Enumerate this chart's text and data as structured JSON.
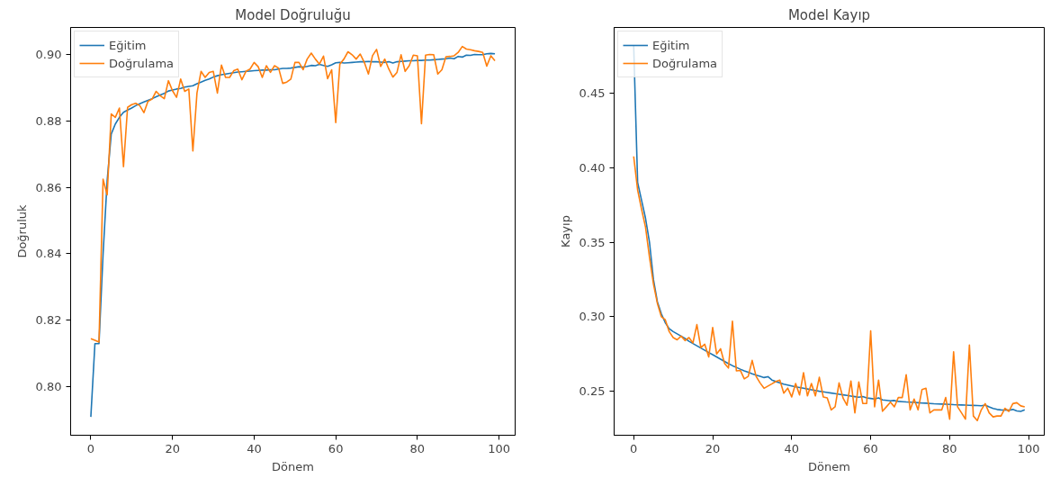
{
  "chart_data": [
    {
      "type": "line",
      "title": "Model Doğruluğu",
      "xlabel": "Dönem",
      "ylabel": "Doğruluk",
      "legend": "top left",
      "grid": false,
      "x": [
        0,
        1,
        2,
        3,
        4,
        5,
        6,
        7,
        8,
        9,
        10,
        11,
        12,
        13,
        14,
        15,
        16,
        17,
        18,
        19,
        20,
        21,
        22,
        23,
        24,
        25,
        26,
        27,
        28,
        29,
        30,
        31,
        32,
        33,
        34,
        35,
        36,
        37,
        38,
        39,
        40,
        41,
        42,
        43,
        44,
        45,
        46,
        47,
        48,
        49,
        50,
        51,
        52,
        53,
        54,
        55,
        56,
        57,
        58,
        59,
        60,
        61,
        62,
        63,
        64,
        65,
        66,
        67,
        68,
        69,
        70,
        71,
        72,
        73,
        74,
        75,
        76,
        77,
        78,
        79,
        80,
        81,
        82,
        83,
        84,
        85,
        86,
        87,
        88,
        89,
        90,
        91,
        92,
        93,
        94,
        95,
        96,
        97,
        98,
        99
      ],
      "xlim": [
        -4.95,
        103.95
      ],
      "xticks": [
        0,
        20,
        40,
        60,
        80,
        100
      ],
      "ylim": [
        0.7855,
        0.908
      ],
      "yticks": [
        {
          "value": 0.8,
          "label": "0.80"
        },
        {
          "value": 0.82,
          "label": "0.82"
        },
        {
          "value": 0.84,
          "label": "0.84"
        },
        {
          "value": 0.86,
          "label": "0.86"
        },
        {
          "value": 0.88,
          "label": "0.88"
        },
        {
          "value": 0.9,
          "label": "0.90"
        }
      ],
      "series": [
        {
          "name": "Eğitim",
          "color": "#1f77b4",
          "values": [
            0.791,
            0.813,
            0.813,
            0.84,
            0.862,
            0.876,
            0.879,
            0.881,
            0.8825,
            0.8832,
            0.8838,
            0.8845,
            0.8851,
            0.8856,
            0.8861,
            0.8866,
            0.8872,
            0.8877,
            0.8882,
            0.8889,
            0.8892,
            0.8895,
            0.8897,
            0.8901,
            0.8903,
            0.8905,
            0.8911,
            0.8916,
            0.8921,
            0.8925,
            0.8931,
            0.8935,
            0.8938,
            0.894,
            0.8942,
            0.8944,
            0.8946,
            0.8947,
            0.8948,
            0.8949,
            0.895,
            0.8951,
            0.8952,
            0.8952,
            0.8953,
            0.8953,
            0.8955,
            0.8957,
            0.8957,
            0.8958,
            0.896,
            0.8962,
            0.8961,
            0.8963,
            0.8966,
            0.8965,
            0.8969,
            0.8966,
            0.8963,
            0.8968,
            0.8974,
            0.8975,
            0.8973,
            0.8974,
            0.8975,
            0.8976,
            0.8977,
            0.8977,
            0.8978,
            0.8977,
            0.8977,
            0.8976,
            0.8975,
            0.8977,
            0.8973,
            0.8977,
            0.8978,
            0.8979,
            0.898,
            0.898,
            0.8981,
            0.8981,
            0.8982,
            0.8982,
            0.8983,
            0.8984,
            0.8985,
            0.8986,
            0.8988,
            0.8986,
            0.8993,
            0.8991,
            0.8997,
            0.8996,
            0.8999,
            0.8998,
            0.8998,
            0.9001,
            0.9002,
            0.9001
          ]
        },
        {
          "name": "Doğrulama",
          "color": "#ff7f0e",
          "values": [
            0.8145,
            0.814,
            0.8135,
            0.8624,
            0.8577,
            0.882,
            0.881,
            0.8838,
            0.8662,
            0.884,
            0.8848,
            0.8852,
            0.8845,
            0.8824,
            0.8858,
            0.8865,
            0.8888,
            0.8875,
            0.8866,
            0.892,
            0.889,
            0.887,
            0.8925,
            0.8888,
            0.8895,
            0.8709,
            0.8883,
            0.8948,
            0.893,
            0.8945,
            0.8948,
            0.8883,
            0.8967,
            0.893,
            0.893,
            0.895,
            0.8955,
            0.8923,
            0.8948,
            0.8955,
            0.8975,
            0.8962,
            0.893,
            0.8965,
            0.8945,
            0.8965,
            0.8958,
            0.8912,
            0.8916,
            0.8925,
            0.8975,
            0.8975,
            0.8953,
            0.8985,
            0.9003,
            0.8985,
            0.897,
            0.8994,
            0.8926,
            0.8953,
            0.8794,
            0.897,
            0.8985,
            0.9007,
            0.8998,
            0.8985,
            0.9,
            0.8975,
            0.894,
            0.8995,
            0.9014,
            0.8963,
            0.8985,
            0.8955,
            0.8931,
            0.8945,
            0.8998,
            0.8948,
            0.8965,
            0.8997,
            0.8995,
            0.8791,
            0.8997,
            0.8999,
            0.8998,
            0.894,
            0.8953,
            0.8992,
            0.8993,
            0.8995,
            0.9005,
            0.9023,
            0.9015,
            0.9013,
            0.901,
            0.9008,
            0.9005,
            0.8964,
            0.8995,
            0.898
          ]
        }
      ]
    },
    {
      "type": "line",
      "title": "Model Kayıp",
      "xlabel": "Dönem",
      "ylabel": "Kayıp",
      "legend": "top left",
      "grid": false,
      "x": [
        0,
        1,
        2,
        3,
        4,
        5,
        6,
        7,
        8,
        9,
        10,
        11,
        12,
        13,
        14,
        15,
        16,
        17,
        18,
        19,
        20,
        21,
        22,
        23,
        24,
        25,
        26,
        27,
        28,
        29,
        30,
        31,
        32,
        33,
        34,
        35,
        36,
        37,
        38,
        39,
        40,
        41,
        42,
        43,
        44,
        45,
        46,
        47,
        48,
        49,
        50,
        51,
        52,
        53,
        54,
        55,
        56,
        57,
        58,
        59,
        60,
        61,
        62,
        63,
        64,
        65,
        66,
        67,
        68,
        69,
        70,
        71,
        72,
        73,
        74,
        75,
        76,
        77,
        78,
        79,
        80,
        81,
        82,
        83,
        84,
        85,
        86,
        87,
        88,
        89,
        90,
        91,
        92,
        93,
        94,
        95,
        96,
        97,
        98,
        99
      ],
      "xlim": [
        -4.95,
        103.95
      ],
      "xticks": [
        0,
        20,
        40,
        60,
        80,
        100
      ],
      "ylim": [
        0.2205,
        0.494
      ],
      "yticks": [
        {
          "value": 0.25,
          "label": "0.25"
        },
        {
          "value": 0.3,
          "label": "0.30"
        },
        {
          "value": 0.35,
          "label": "0.35"
        },
        {
          "value": 0.4,
          "label": "0.40"
        },
        {
          "value": 0.45,
          "label": "0.45"
        }
      ],
      "series": [
        {
          "name": "Eğitim",
          "color": "#1f77b4",
          "values": [
            0.482,
            0.39,
            0.378,
            0.366,
            0.35,
            0.325,
            0.31,
            0.302,
            0.296,
            0.292,
            0.29,
            0.2885,
            0.287,
            0.2855,
            0.2835,
            0.282,
            0.2805,
            0.279,
            0.2775,
            0.276,
            0.2745,
            0.273,
            0.2715,
            0.27,
            0.2685,
            0.2672,
            0.266,
            0.2648,
            0.2637,
            0.2627,
            0.2617,
            0.2608,
            0.26,
            0.2592,
            0.2598,
            0.2575,
            0.2565,
            0.2556,
            0.2548,
            0.2542,
            0.2536,
            0.253,
            0.2525,
            0.252,
            0.2515,
            0.251,
            0.2505,
            0.25,
            0.2496,
            0.2492,
            0.2488,
            0.2484,
            0.248,
            0.2476,
            0.2472,
            0.2468,
            0.2464,
            0.246,
            0.2465,
            0.2456,
            0.2452,
            0.2448,
            0.2455,
            0.2442,
            0.2439,
            0.2436,
            0.2438,
            0.2432,
            0.243,
            0.2428,
            0.2427,
            0.2425,
            0.2423,
            0.2421,
            0.242,
            0.2418,
            0.2416,
            0.2415,
            0.2414,
            0.2413,
            0.2412,
            0.241,
            0.2409,
            0.2408,
            0.2407,
            0.2406,
            0.2405,
            0.2404,
            0.2403,
            0.2407,
            0.2395,
            0.2385,
            0.2378,
            0.2375,
            0.2374,
            0.2373,
            0.2378,
            0.2368,
            0.2365,
            0.2375
          ]
        },
        {
          "name": "Doğrulama",
          "color": "#ff7f0e",
          "values": [
            0.4075,
            0.385,
            0.372,
            0.36,
            0.34,
            0.322,
            0.309,
            0.3,
            0.298,
            0.29,
            0.286,
            0.2845,
            0.287,
            0.284,
            0.286,
            0.2824,
            0.2947,
            0.2793,
            0.2815,
            0.273,
            0.2927,
            0.275,
            0.2785,
            0.2687,
            0.2656,
            0.297,
            0.2637,
            0.264,
            0.2583,
            0.26,
            0.2707,
            0.26,
            0.2556,
            0.252,
            0.2535,
            0.255,
            0.2566,
            0.2575,
            0.2487,
            0.2521,
            0.2462,
            0.2552,
            0.2475,
            0.2625,
            0.2469,
            0.2552,
            0.2469,
            0.2594,
            0.2462,
            0.2455,
            0.2375,
            0.2396,
            0.2556,
            0.2455,
            0.2406,
            0.2569,
            0.2355,
            0.2562,
            0.2418,
            0.2418,
            0.2905,
            0.2396,
            0.2575,
            0.2366,
            0.2396,
            0.2427,
            0.2396,
            0.2458,
            0.2458,
            0.2611,
            0.2375,
            0.2448,
            0.2375,
            0.2512,
            0.252,
            0.2355,
            0.2375,
            0.2375,
            0.2375,
            0.2458,
            0.2313,
            0.2765,
            0.2396,
            0.2355,
            0.2313,
            0.281,
            0.2334,
            0.2303,
            0.2375,
            0.2417,
            0.2355,
            0.2328,
            0.2334,
            0.2334,
            0.2386,
            0.2365,
            0.2417,
            0.2423,
            0.2402,
            0.2395
          ]
        }
      ]
    }
  ]
}
